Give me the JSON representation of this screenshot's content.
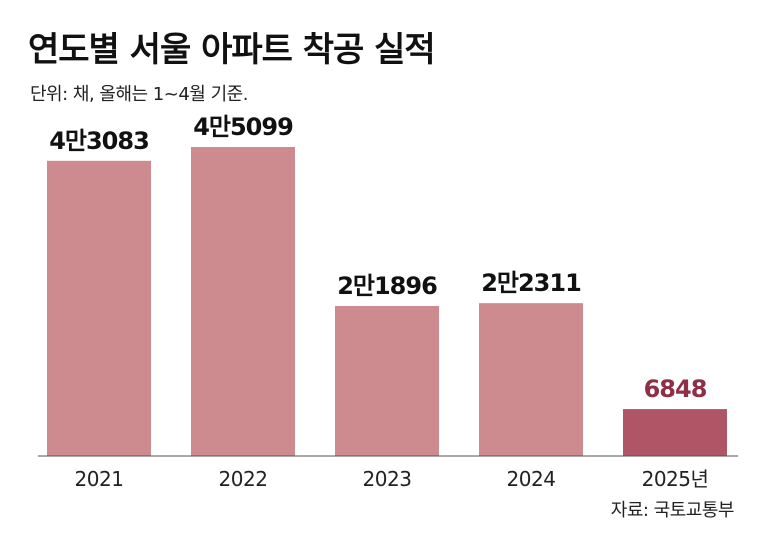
{
  "title": "연도별 서울 아파트 착공 실적",
  "subtitle": "단위: 채, 올해는 1~4월 기준.",
  "source": "자료: 국토교통부",
  "colors": {
    "bar": "#cd8a8f",
    "bar_highlight": "#b05565",
    "highlight_label": "#8e2f45",
    "label": "#111111",
    "axis": "#555555"
  },
  "chart_data": {
    "type": "bar",
    "categories": [
      "2021",
      "2022",
      "2023",
      "2024",
      "2025년"
    ],
    "values": [
      43083,
      45099,
      21896,
      22311,
      6848
    ],
    "value_labels": [
      "4만3083",
      "4만5099",
      "2만1896",
      "2만2311",
      "6848"
    ],
    "highlight_index": 4,
    "ylim": [
      0,
      50000
    ],
    "grid": false,
    "legend": "none"
  }
}
